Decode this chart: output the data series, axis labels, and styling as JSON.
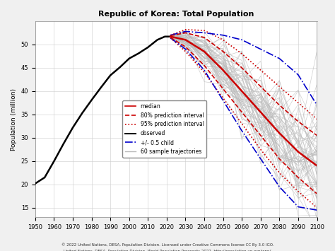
{
  "title": "Republic of Korea: Total Population",
  "xlabel": "",
  "ylabel": "Population (million)",
  "xlim": [
    1950,
    2100
  ],
  "ylim": [
    13,
    55
  ],
  "yticks": [
    15,
    20,
    25,
    30,
    35,
    40,
    45,
    50
  ],
  "xticks": [
    1950,
    1960,
    1970,
    1980,
    1990,
    2000,
    2010,
    2020,
    2030,
    2040,
    2050,
    2060,
    2070,
    2080,
    2090,
    2100
  ],
  "observed_x": [
    1950,
    1955,
    1960,
    1965,
    1970,
    1975,
    1980,
    1985,
    1990,
    1995,
    2000,
    2005,
    2010,
    2015,
    2019,
    2022
  ],
  "observed_y": [
    20.2,
    21.5,
    25.0,
    28.7,
    32.2,
    35.3,
    38.1,
    40.8,
    43.4,
    45.1,
    47.0,
    48.1,
    49.4,
    51.0,
    51.7,
    51.7
  ],
  "median_x": [
    2022,
    2030,
    2040,
    2050,
    2060,
    2070,
    2080,
    2090,
    2100
  ],
  "median_y": [
    51.7,
    51.0,
    48.5,
    44.5,
    40.0,
    35.5,
    31.0,
    27.0,
    24.0
  ],
  "pi80_upper_x": [
    2022,
    2030,
    2040,
    2050,
    2060,
    2070,
    2080,
    2090,
    2100
  ],
  "pi80_upper_y": [
    51.9,
    52.5,
    51.5,
    48.5,
    45.0,
    41.0,
    37.0,
    33.5,
    30.5
  ],
  "pi80_lower_x": [
    2022,
    2030,
    2040,
    2050,
    2060,
    2070,
    2080,
    2090,
    2100
  ],
  "pi80_lower_y": [
    51.5,
    49.5,
    45.5,
    40.5,
    35.5,
    30.5,
    25.5,
    21.5,
    18.0
  ],
  "pi95_upper_x": [
    2022,
    2030,
    2040,
    2050,
    2060,
    2070,
    2080,
    2090,
    2100
  ],
  "pi95_upper_y": [
    52.0,
    53.2,
    53.0,
    51.0,
    48.0,
    44.5,
    41.0,
    37.5,
    34.0
  ],
  "pi95_lower_x": [
    2022,
    2030,
    2040,
    2050,
    2060,
    2070,
    2080,
    2090,
    2100
  ],
  "pi95_lower_y": [
    51.4,
    48.5,
    44.0,
    38.5,
    33.0,
    27.5,
    22.5,
    18.5,
    15.0
  ],
  "half_child_upper_x": [
    2022,
    2030,
    2040,
    2050,
    2060,
    2070,
    2080,
    2090,
    2100
  ],
  "half_child_upper_y": [
    52.0,
    52.8,
    52.5,
    52.0,
    51.0,
    49.0,
    47.0,
    43.5,
    37.0
  ],
  "half_child_lower_x": [
    2022,
    2030,
    2040,
    2050,
    2060,
    2070,
    2080,
    2090,
    2100
  ],
  "half_child_lower_y": [
    51.4,
    49.0,
    44.5,
    38.0,
    31.5,
    25.5,
    19.5,
    15.2,
    14.5
  ],
  "background_color": "#f0f0f0",
  "plot_bg_color": "#ffffff",
  "observed_color": "#000000",
  "median_color": "#cc0000",
  "pi80_color": "#cc0000",
  "pi95_color": "#cc0000",
  "half_child_color": "#0000cc",
  "sample_color": "#bbbbbb",
  "footnote1": "© 2022 United Nations, DESA, Population Division. Licensed under Creative Commons license CC By 3.0 IGO.",
  "footnote2": "United Nations, DESA, Population Division. World Population Prospects 2022. http://population.un.org/wpp/"
}
